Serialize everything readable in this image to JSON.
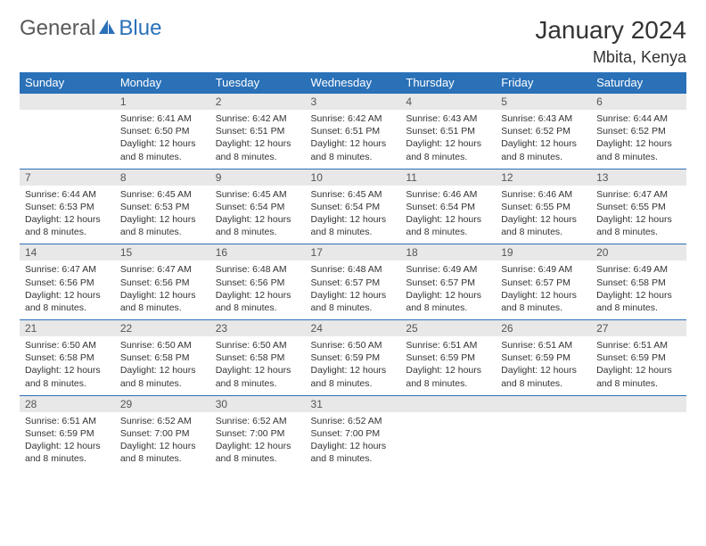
{
  "brand": {
    "text1": "General",
    "text2": "Blue"
  },
  "title": "January 2024",
  "location": "Mbita, Kenya",
  "colors": {
    "header_bg": "#2a71b8",
    "header_text": "#ffffff",
    "daynum_bg": "#e8e8e8",
    "border": "#2a71b8",
    "body_text": "#333333",
    "logo_gray": "#5a5a5a",
    "logo_blue": "#2a71b8"
  },
  "weekdays": [
    "Sunday",
    "Monday",
    "Tuesday",
    "Wednesday",
    "Thursday",
    "Friday",
    "Saturday"
  ],
  "weeks": [
    {
      "nums": [
        "",
        "1",
        "2",
        "3",
        "4",
        "5",
        "6"
      ],
      "cells": [
        null,
        {
          "sunrise": "6:41 AM",
          "sunset": "6:50 PM",
          "daylight": "12 hours and 8 minutes."
        },
        {
          "sunrise": "6:42 AM",
          "sunset": "6:51 PM",
          "daylight": "12 hours and 8 minutes."
        },
        {
          "sunrise": "6:42 AM",
          "sunset": "6:51 PM",
          "daylight": "12 hours and 8 minutes."
        },
        {
          "sunrise": "6:43 AM",
          "sunset": "6:51 PM",
          "daylight": "12 hours and 8 minutes."
        },
        {
          "sunrise": "6:43 AM",
          "sunset": "6:52 PM",
          "daylight": "12 hours and 8 minutes."
        },
        {
          "sunrise": "6:44 AM",
          "sunset": "6:52 PM",
          "daylight": "12 hours and 8 minutes."
        }
      ]
    },
    {
      "nums": [
        "7",
        "8",
        "9",
        "10",
        "11",
        "12",
        "13"
      ],
      "cells": [
        {
          "sunrise": "6:44 AM",
          "sunset": "6:53 PM",
          "daylight": "12 hours and 8 minutes."
        },
        {
          "sunrise": "6:45 AM",
          "sunset": "6:53 PM",
          "daylight": "12 hours and 8 minutes."
        },
        {
          "sunrise": "6:45 AM",
          "sunset": "6:54 PM",
          "daylight": "12 hours and 8 minutes."
        },
        {
          "sunrise": "6:45 AM",
          "sunset": "6:54 PM",
          "daylight": "12 hours and 8 minutes."
        },
        {
          "sunrise": "6:46 AM",
          "sunset": "6:54 PM",
          "daylight": "12 hours and 8 minutes."
        },
        {
          "sunrise": "6:46 AM",
          "sunset": "6:55 PM",
          "daylight": "12 hours and 8 minutes."
        },
        {
          "sunrise": "6:47 AM",
          "sunset": "6:55 PM",
          "daylight": "12 hours and 8 minutes."
        }
      ]
    },
    {
      "nums": [
        "14",
        "15",
        "16",
        "17",
        "18",
        "19",
        "20"
      ],
      "cells": [
        {
          "sunrise": "6:47 AM",
          "sunset": "6:56 PM",
          "daylight": "12 hours and 8 minutes."
        },
        {
          "sunrise": "6:47 AM",
          "sunset": "6:56 PM",
          "daylight": "12 hours and 8 minutes."
        },
        {
          "sunrise": "6:48 AM",
          "sunset": "6:56 PM",
          "daylight": "12 hours and 8 minutes."
        },
        {
          "sunrise": "6:48 AM",
          "sunset": "6:57 PM",
          "daylight": "12 hours and 8 minutes."
        },
        {
          "sunrise": "6:49 AM",
          "sunset": "6:57 PM",
          "daylight": "12 hours and 8 minutes."
        },
        {
          "sunrise": "6:49 AM",
          "sunset": "6:57 PM",
          "daylight": "12 hours and 8 minutes."
        },
        {
          "sunrise": "6:49 AM",
          "sunset": "6:58 PM",
          "daylight": "12 hours and 8 minutes."
        }
      ]
    },
    {
      "nums": [
        "21",
        "22",
        "23",
        "24",
        "25",
        "26",
        "27"
      ],
      "cells": [
        {
          "sunrise": "6:50 AM",
          "sunset": "6:58 PM",
          "daylight": "12 hours and 8 minutes."
        },
        {
          "sunrise": "6:50 AM",
          "sunset": "6:58 PM",
          "daylight": "12 hours and 8 minutes."
        },
        {
          "sunrise": "6:50 AM",
          "sunset": "6:58 PM",
          "daylight": "12 hours and 8 minutes."
        },
        {
          "sunrise": "6:50 AM",
          "sunset": "6:59 PM",
          "daylight": "12 hours and 8 minutes."
        },
        {
          "sunrise": "6:51 AM",
          "sunset": "6:59 PM",
          "daylight": "12 hours and 8 minutes."
        },
        {
          "sunrise": "6:51 AM",
          "sunset": "6:59 PM",
          "daylight": "12 hours and 8 minutes."
        },
        {
          "sunrise": "6:51 AM",
          "sunset": "6:59 PM",
          "daylight": "12 hours and 8 minutes."
        }
      ]
    },
    {
      "nums": [
        "28",
        "29",
        "30",
        "31",
        "",
        "",
        ""
      ],
      "cells": [
        {
          "sunrise": "6:51 AM",
          "sunset": "6:59 PM",
          "daylight": "12 hours and 8 minutes."
        },
        {
          "sunrise": "6:52 AM",
          "sunset": "7:00 PM",
          "daylight": "12 hours and 8 minutes."
        },
        {
          "sunrise": "6:52 AM",
          "sunset": "7:00 PM",
          "daylight": "12 hours and 8 minutes."
        },
        {
          "sunrise": "6:52 AM",
          "sunset": "7:00 PM",
          "daylight": "12 hours and 8 minutes."
        },
        null,
        null,
        null
      ]
    }
  ],
  "labels": {
    "sunrise": "Sunrise:",
    "sunset": "Sunset:",
    "daylight": "Daylight:"
  }
}
